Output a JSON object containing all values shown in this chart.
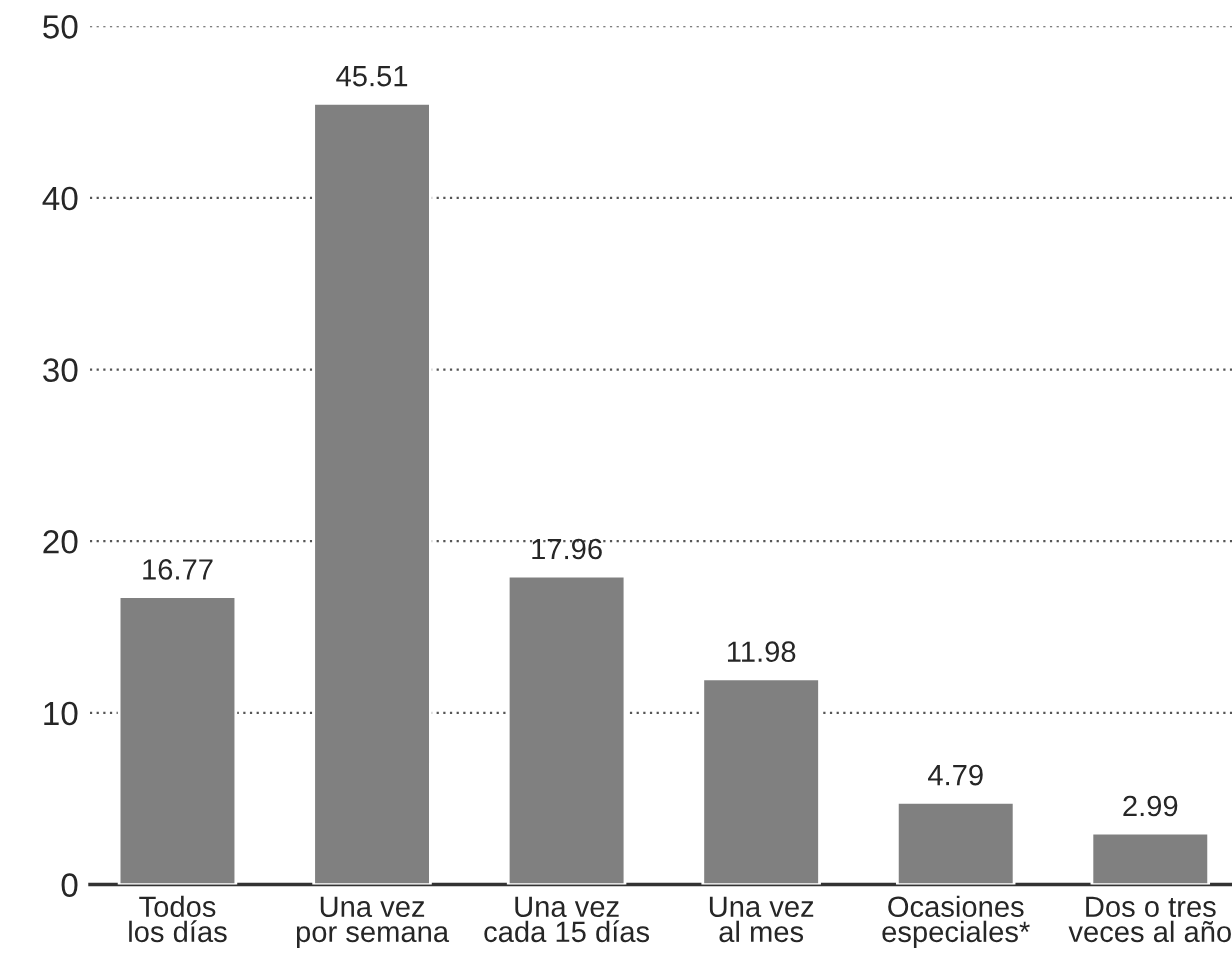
{
  "chart_data": {
    "type": "bar",
    "categories": [
      "Todos\nlos días",
      "Una vez\npor semana",
      "Una vez\ncada 15 días",
      "Una vez\nal mes",
      "Ocasiones\nespeciales*",
      "Dos o tres\nveces al año"
    ],
    "values": [
      16.77,
      45.51,
      17.96,
      11.98,
      4.79,
      2.99
    ],
    "color": "#808080",
    "data_labels": true,
    "ylim": [
      0,
      50
    ],
    "yticks": [
      0,
      10,
      20,
      30,
      40,
      50
    ],
    "grid": "y"
  }
}
